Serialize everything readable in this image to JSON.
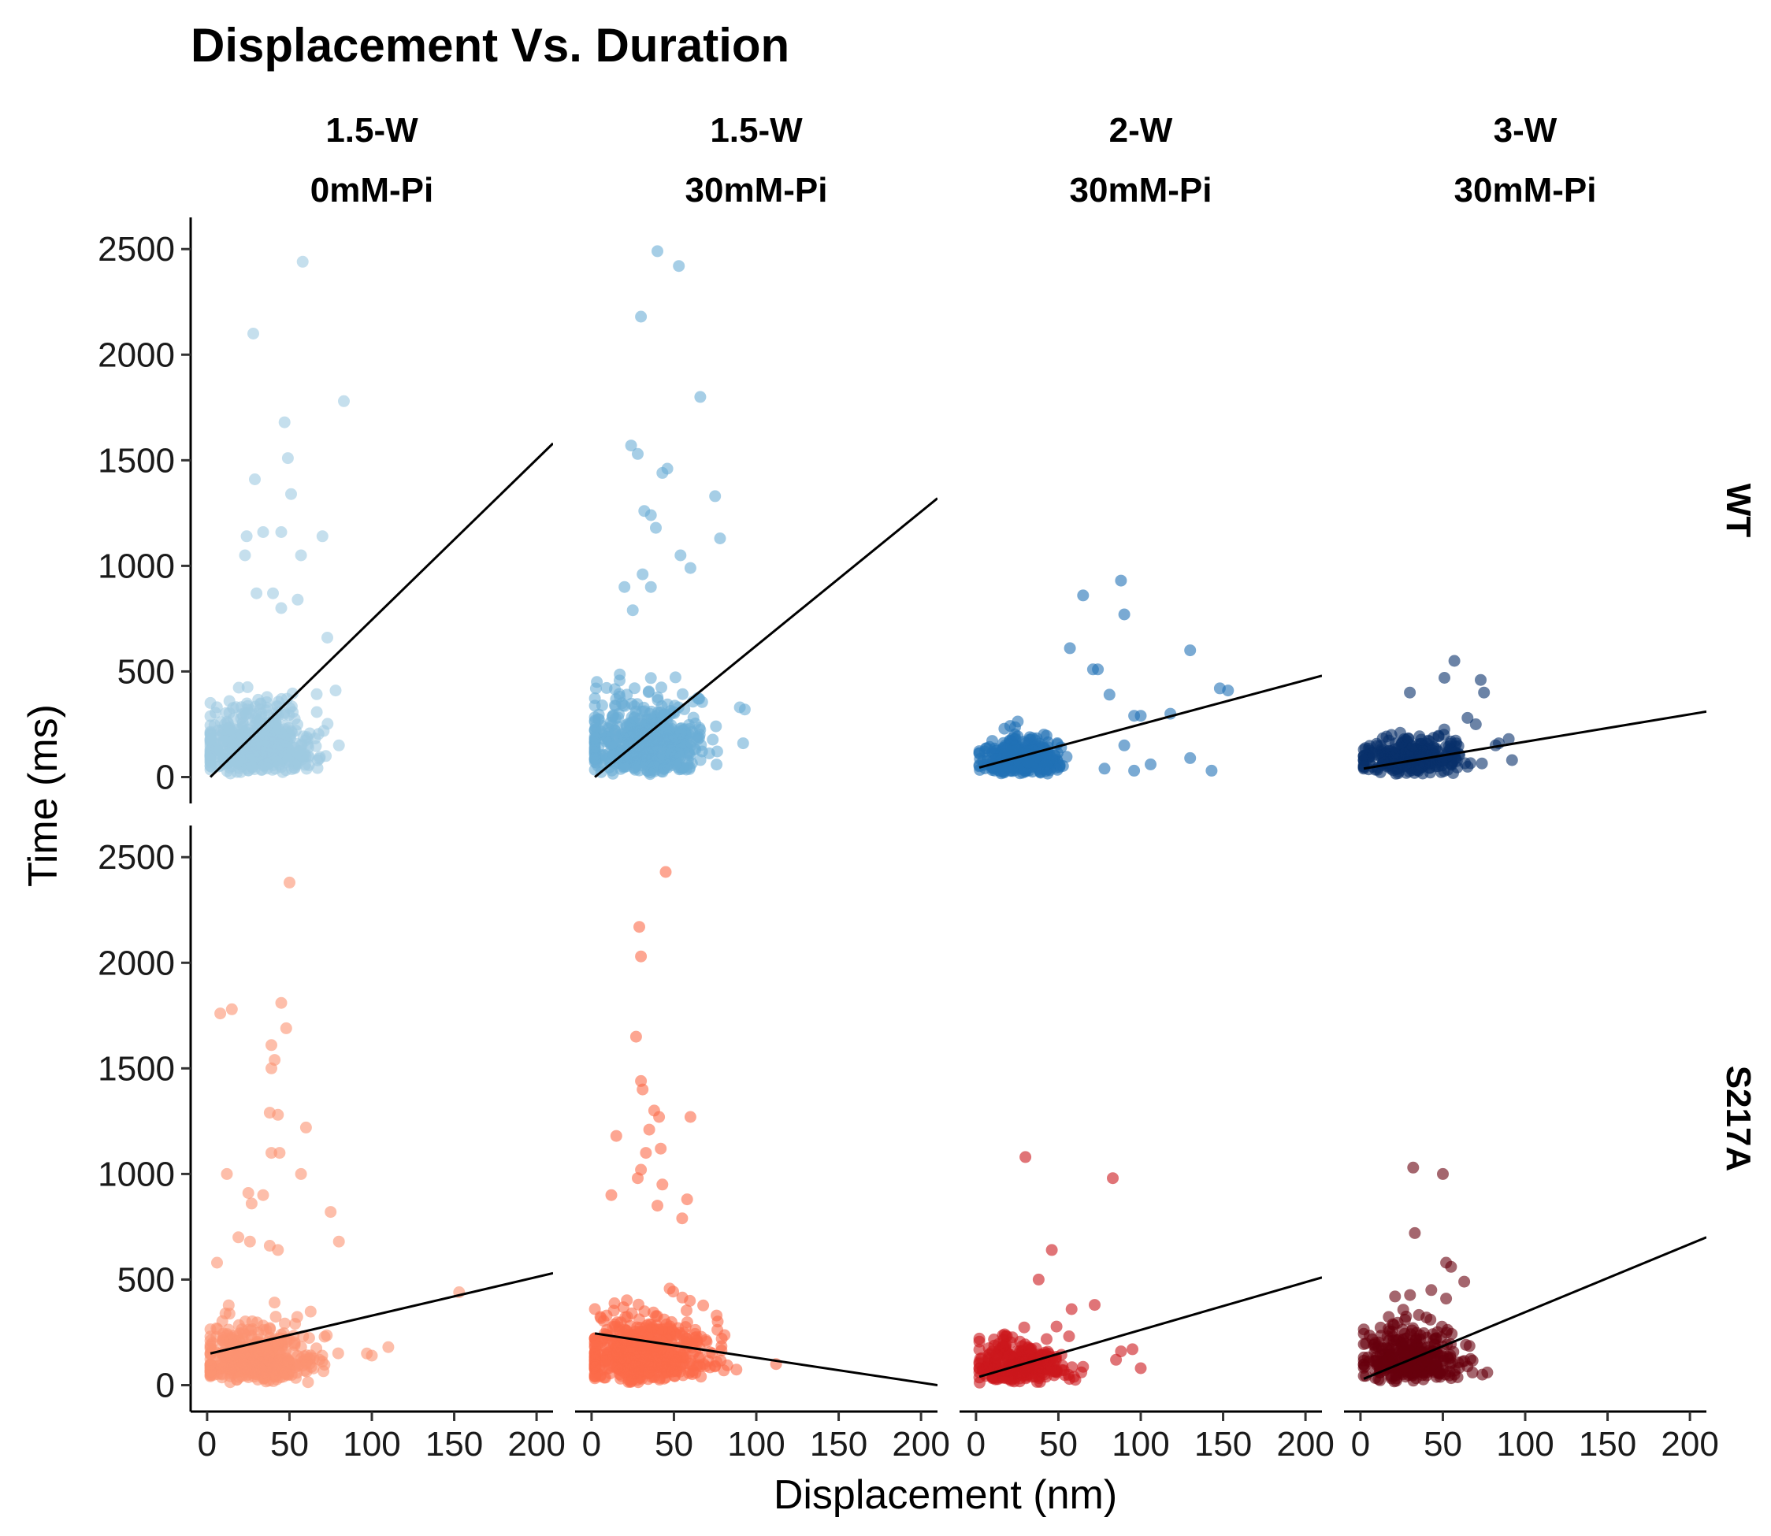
{
  "chart_data": {
    "type": "scatter",
    "title": "Displacement Vs. Duration",
    "xlabel": "Displacement (nm)",
    "ylabel": "Time (ms)",
    "xlim": [
      -10,
      210
    ],
    "ylim": [
      -125,
      2650
    ],
    "x_ticks": [
      "0",
      "50",
      "100",
      "150",
      "200"
    ],
    "y_ticks": [
      "0",
      "500",
      "1000",
      "1500",
      "2000",
      "2500"
    ],
    "x_tick_values": [
      0,
      50,
      100,
      150,
      200
    ],
    "y_tick_values": [
      0,
      500,
      1000,
      1500,
      2000,
      2500
    ],
    "columns": [
      {
        "line1": "1.5-W",
        "line2": "0mM-Pi"
      },
      {
        "line1": "1.5-W",
        "line2": "30mM-Pi"
      },
      {
        "line1": "2-W",
        "line2": "30mM-Pi"
      },
      {
        "line1": "3-W",
        "line2": "30mM-Pi"
      }
    ],
    "rows": [
      "WT",
      "S217A"
    ],
    "panels": [
      {
        "row": "WT",
        "column": "1.5-W 0mM-Pi",
        "color": "#9ecae1",
        "fit": {
          "x": [
            2,
            210
          ],
          "y": [
            0,
            1580
          ]
        },
        "points": {
          "cluster": {
            "n": 520,
            "xmin": 2,
            "xmax": 75,
            "xcenter": 30,
            "ycenter": 150
          },
          "outliers": [
            [
              58,
              2440
            ],
            [
              28,
              2100
            ],
            [
              83,
              1780
            ],
            [
              47,
              1680
            ],
            [
              49,
              1510
            ],
            [
              29,
              1410
            ],
            [
              51,
              1340
            ],
            [
              34,
              1160
            ],
            [
              24,
              1140
            ],
            [
              45,
              1160
            ],
            [
              70,
              1140
            ],
            [
              23,
              1050
            ],
            [
              57,
              1050
            ],
            [
              30,
              870
            ],
            [
              40,
              870
            ],
            [
              55,
              840
            ],
            [
              45,
              800
            ],
            [
              73,
              660
            ],
            [
              78,
              410
            ],
            [
              80,
              150
            ]
          ]
        }
      },
      {
        "row": "WT",
        "column": "1.5-W 30mM-Pi",
        "color": "#6baed6",
        "fit": {
          "x": [
            2,
            210
          ],
          "y": [
            0,
            1320
          ]
        },
        "points": {
          "cluster": {
            "n": 560,
            "xmin": 2,
            "xmax": 80,
            "xcenter": 32,
            "ycenter": 160
          },
          "outliers": [
            [
              40,
              2490
            ],
            [
              53,
              2420
            ],
            [
              30,
              2180
            ],
            [
              66,
              1800
            ],
            [
              24,
              1570
            ],
            [
              28,
              1530
            ],
            [
              46,
              1460
            ],
            [
              43,
              1440
            ],
            [
              75,
              1330
            ],
            [
              32,
              1260
            ],
            [
              36,
              1240
            ],
            [
              39,
              1180
            ],
            [
              78,
              1130
            ],
            [
              54,
              1050
            ],
            [
              31,
              960
            ],
            [
              60,
              990
            ],
            [
              20,
              900
            ],
            [
              36,
              900
            ],
            [
              25,
              790
            ],
            [
              90,
              330
            ],
            [
              93,
              320
            ],
            [
              92,
              160
            ]
          ]
        }
      },
      {
        "row": "WT",
        "column": "2-W 30mM-Pi",
        "color": "#2171b5",
        "fit": {
          "x": [
            2,
            210
          ],
          "y": [
            45,
            480
          ]
        },
        "points": {
          "cluster": {
            "n": 380,
            "xmin": 2,
            "xmax": 55,
            "xcenter": 28,
            "ycenter": 80
          },
          "outliers": [
            [
              88,
              930
            ],
            [
              65,
              860
            ],
            [
              90,
              770
            ],
            [
              57,
              610
            ],
            [
              71,
              510
            ],
            [
              74,
              510
            ],
            [
              130,
              600
            ],
            [
              148,
              420
            ],
            [
              153,
              410
            ],
            [
              81,
              390
            ],
            [
              96,
              290
            ],
            [
              100,
              290
            ],
            [
              118,
              300
            ],
            [
              106,
              60
            ],
            [
              130,
              90
            ],
            [
              143,
              30
            ],
            [
              96,
              30
            ],
            [
              78,
              40
            ],
            [
              90,
              150
            ]
          ]
        }
      },
      {
        "row": "WT",
        "column": "3-W 30mM-Pi",
        "color": "#08306b",
        "fit": {
          "x": [
            2,
            210
          ],
          "y": [
            40,
            310
          ]
        },
        "points": {
          "cluster": {
            "n": 300,
            "xmin": 2,
            "xmax": 75,
            "xcenter": 32,
            "ycenter": 80
          },
          "outliers": [
            [
              57,
              550
            ],
            [
              51,
              470
            ],
            [
              73,
              460
            ],
            [
              30,
              400
            ],
            [
              75,
              400
            ],
            [
              65,
              280
            ],
            [
              70,
              250
            ],
            [
              82,
              150
            ],
            [
              84,
              160
            ],
            [
              92,
              80
            ],
            [
              90,
              180
            ]
          ]
        }
      },
      {
        "row": "S217A",
        "column": "1.5-W 0mM-Pi",
        "color": "#fc9272",
        "fit": {
          "x": [
            2,
            210
          ],
          "y": [
            150,
            530
          ]
        },
        "points": {
          "cluster": {
            "n": 460,
            "xmin": 2,
            "xmax": 80,
            "xcenter": 30,
            "ycenter": 120
          },
          "outliers": [
            [
              50,
              2380
            ],
            [
              45,
              1810
            ],
            [
              8,
              1760
            ],
            [
              15,
              1780
            ],
            [
              48,
              1690
            ],
            [
              39,
              1610
            ],
            [
              41,
              1540
            ],
            [
              39,
              1500
            ],
            [
              38,
              1290
            ],
            [
              43,
              1280
            ],
            [
              60,
              1220
            ],
            [
              39,
              1100
            ],
            [
              44,
              1100
            ],
            [
              57,
              1000
            ],
            [
              12,
              1000
            ],
            [
              25,
              910
            ],
            [
              34,
              900
            ],
            [
              27,
              860
            ],
            [
              75,
              820
            ],
            [
              19,
              700
            ],
            [
              26,
              680
            ],
            [
              38,
              660
            ],
            [
              43,
              640
            ],
            [
              80,
              680
            ],
            [
              6,
              580
            ],
            [
              153,
              440
            ],
            [
              100,
              140
            ],
            [
              110,
              180
            ],
            [
              97,
              150
            ]
          ]
        }
      },
      {
        "row": "S217A",
        "column": "1.5-W 30mM-Pi",
        "color": "#fb6a4a",
        "fit": {
          "x": [
            2,
            210
          ],
          "y": [
            245,
            0
          ]
        },
        "points": {
          "cluster": {
            "n": 560,
            "xmin": 2,
            "xmax": 95,
            "xcenter": 32,
            "ycenter": 140
          },
          "outliers": [
            [
              45,
              2430
            ],
            [
              29,
              2170
            ],
            [
              30,
              2030
            ],
            [
              27,
              1650
            ],
            [
              30,
              1440
            ],
            [
              31,
              1400
            ],
            [
              38,
              1300
            ],
            [
              41,
              1270
            ],
            [
              60,
              1270
            ],
            [
              35,
              1210
            ],
            [
              15,
              1180
            ],
            [
              42,
              1120
            ],
            [
              33,
              1100
            ],
            [
              30,
              1020
            ],
            [
              28,
              980
            ],
            [
              43,
              950
            ],
            [
              12,
              900
            ],
            [
              58,
              880
            ],
            [
              40,
              850
            ],
            [
              55,
              790
            ],
            [
              112,
              100
            ]
          ]
        }
      },
      {
        "row": "S217A",
        "column": "2-W 30mM-Pi",
        "color": "#cb181d",
        "fit": {
          "x": [
            2,
            210
          ],
          "y": [
            40,
            510
          ]
        },
        "points": {
          "cluster": {
            "n": 300,
            "xmin": 2,
            "xmax": 65,
            "xcenter": 28,
            "ycenter": 90
          },
          "outliers": [
            [
              30,
              1080
            ],
            [
              83,
              980
            ],
            [
              46,
              640
            ],
            [
              38,
              500
            ],
            [
              72,
              380
            ],
            [
              58,
              360
            ],
            [
              88,
              160
            ],
            [
              95,
              170
            ],
            [
              100,
              80
            ],
            [
              85,
              120
            ]
          ]
        }
      },
      {
        "row": "S217A",
        "column": "3-W 30mM-Pi",
        "color": "#67000d",
        "fit": {
          "x": [
            2,
            210
          ],
          "y": [
            30,
            700
          ]
        },
        "points": {
          "cluster": {
            "n": 360,
            "xmin": 2,
            "xmax": 70,
            "xcenter": 30,
            "ycenter": 120
          },
          "outliers": [
            [
              32,
              1030
            ],
            [
              50,
              1000
            ],
            [
              33,
              720
            ],
            [
              52,
              580
            ],
            [
              55,
              560
            ],
            [
              63,
              490
            ],
            [
              43,
              450
            ],
            [
              21,
              420
            ],
            [
              52,
              410
            ],
            [
              74,
              50
            ],
            [
              77,
              60
            ],
            [
              68,
              60
            ]
          ]
        }
      }
    ]
  }
}
